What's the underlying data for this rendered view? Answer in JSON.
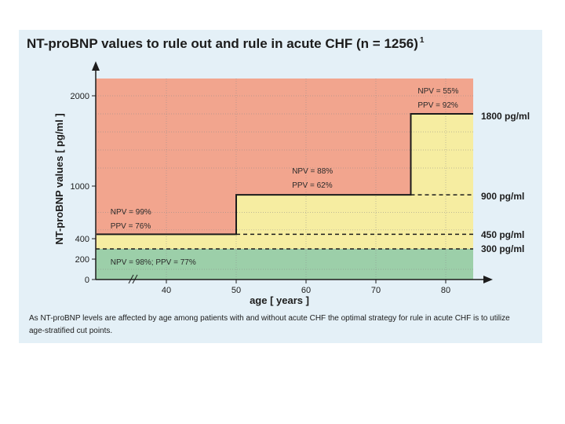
{
  "chart_data": {
    "type": "step",
    "title": "NT-proBNP values to rule out and rule in acute CHF (n = 1256)",
    "title_footnote": "1",
    "xlabel": "age [ years ]",
    "ylabel": "NT-proBNP values [ pg/ml ]",
    "xlim": [
      30,
      85
    ],
    "ylim": [
      0,
      2200
    ],
    "x_ticks": [
      40,
      50,
      60,
      70,
      80
    ],
    "y_ticks": [
      0,
      200,
      400,
      1000,
      2000
    ],
    "x_axis_break": true,
    "cutoffs": [
      {
        "label": "1800 pg/ml",
        "steps": [
          {
            "x_from": 75,
            "x_to": 85,
            "y": 1800
          }
        ],
        "style": "solid"
      },
      {
        "label": "900 pg/ml",
        "steps": [
          {
            "x_from": 50,
            "x_to": 75,
            "y": 900
          }
        ],
        "style": "solid",
        "dashed_continuation": {
          "x_from": 75,
          "x_to": 85,
          "y": 900
        }
      },
      {
        "label": "450 pg/ml",
        "steps": [
          {
            "x_from": 30,
            "x_to": 50,
            "y": 450
          }
        ],
        "style": "solid",
        "dashed_continuation": {
          "x_from": 50,
          "x_to": 85,
          "y": 450
        }
      },
      {
        "label": "300 pg/ml",
        "steps": [
          {
            "x_from": 30,
            "x_to": 85,
            "y": 300
          }
        ],
        "style": "dashed"
      }
    ],
    "step_points": [
      [
        30,
        450
      ],
      [
        50,
        450
      ],
      [
        50,
        900
      ],
      [
        75,
        900
      ],
      [
        75,
        1800
      ],
      [
        85,
        1800
      ]
    ],
    "regions": [
      {
        "name": "rule-in",
        "color": "#f2a58e"
      },
      {
        "name": "grey-zone",
        "color": "#f6eda1"
      },
      {
        "name": "rule-out",
        "color": "#9ccfa9"
      }
    ],
    "annotations": [
      {
        "lines": [
          "NPV = 99%",
          "PPV = 76%"
        ],
        "x": 32,
        "y": 700
      },
      {
        "lines": [
          "NPV = 88%",
          "PPV = 62%"
        ],
        "x": 58,
        "y": 1100
      },
      {
        "lines": [
          "NPV = 55%",
          "PPV = 92%"
        ],
        "x": 76,
        "y": 2000
      },
      {
        "lines": [
          "NPV = 98%; PPV = 77%"
        ],
        "x": 32,
        "y": 170
      }
    ],
    "caption": "As NT-proBNP levels are affected by age among patients with and without acute CHF the optimal strategy for rule in acute CHF is to utilize age-stratified cut points."
  }
}
